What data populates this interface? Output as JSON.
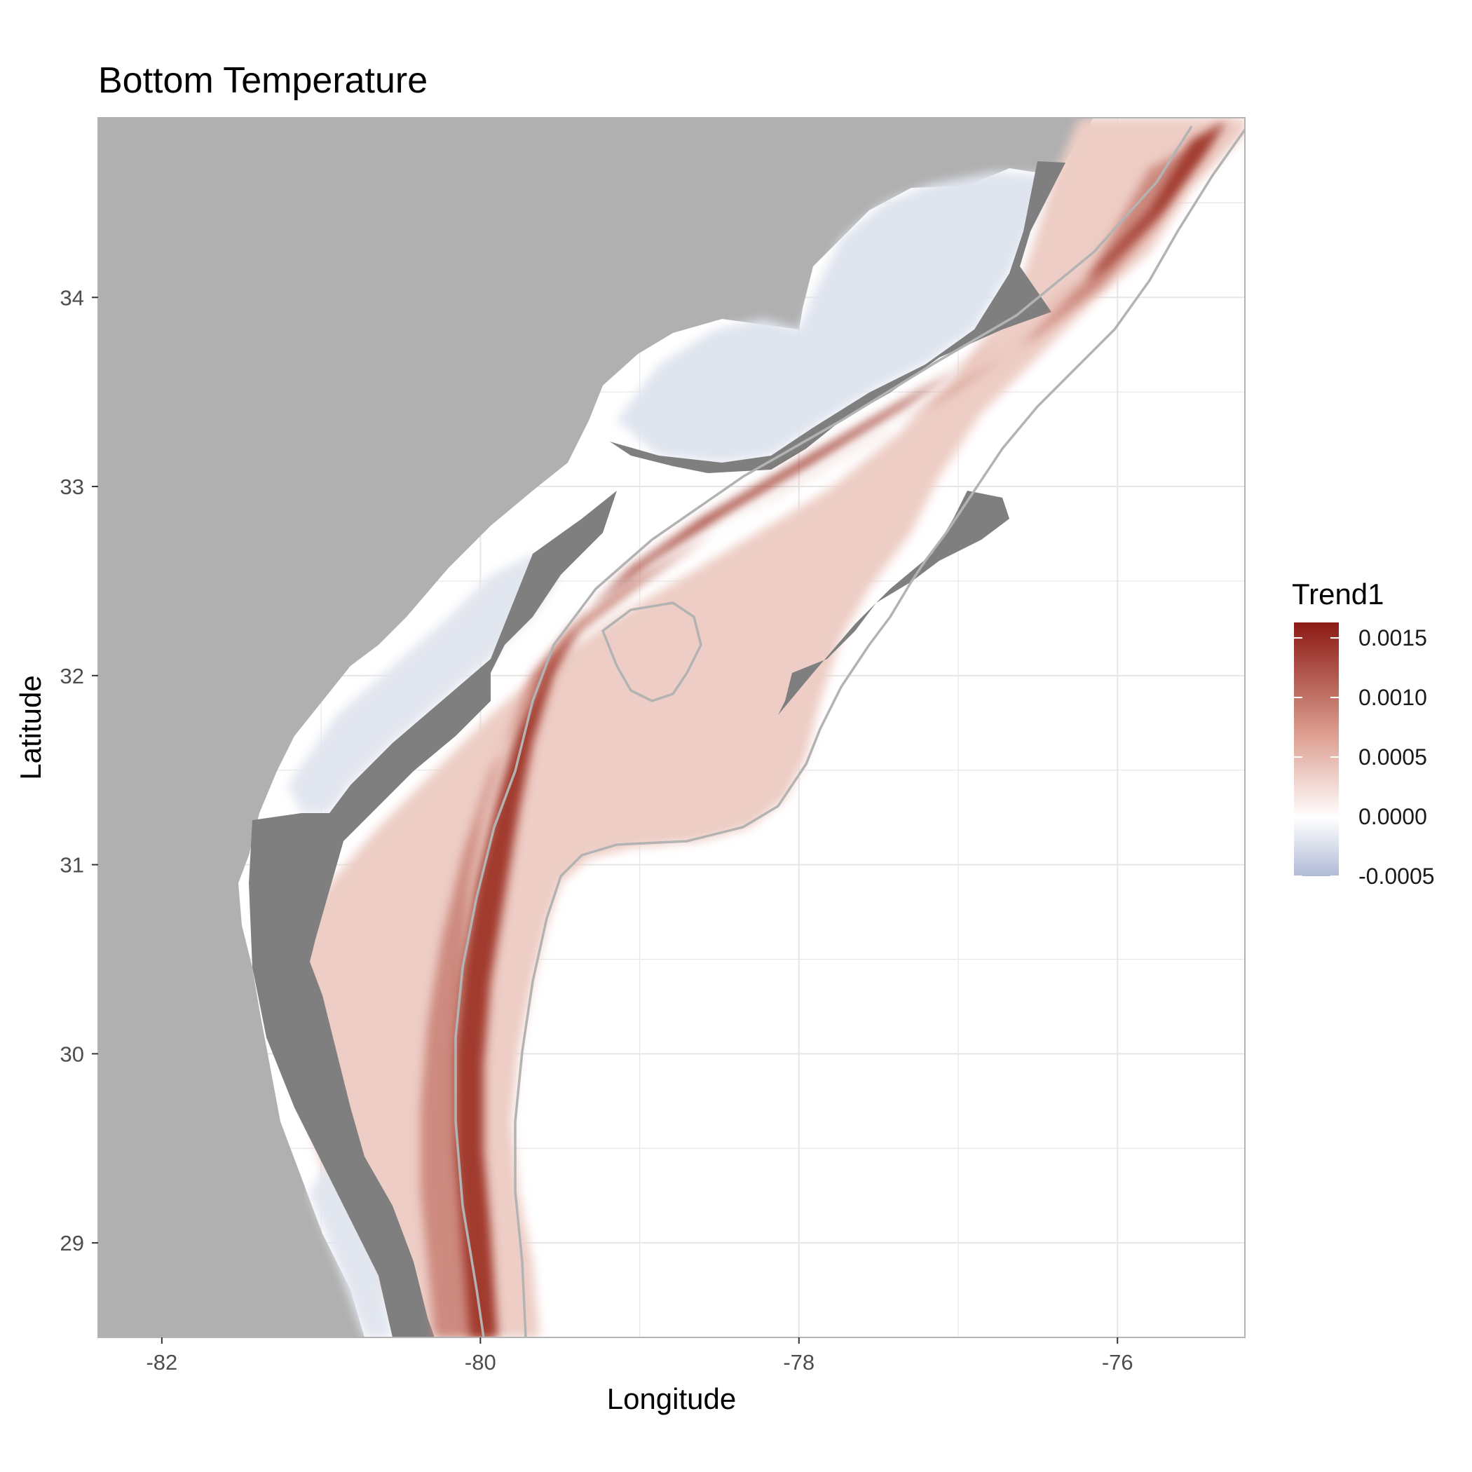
{
  "title": "Bottom Temperature",
  "map": {
    "x_label": "Longitude",
    "y_label": "Latitude",
    "x_range": [
      -82.4,
      -75.2
    ],
    "y_range": [
      28.5,
      34.95
    ],
    "x_ticks": [
      -82,
      -80,
      -78,
      -76
    ],
    "y_ticks": [
      29,
      30,
      31,
      32,
      33,
      34
    ],
    "colors": {
      "land": "#b0b0b0",
      "missing_cells": "#7f7f7f",
      "panel_background": "#ffffff",
      "grid": "#e6e6e6",
      "contour": "#b3b3b3",
      "high": "#8b1a14",
      "mid": "#ffffff",
      "low": "#b0bbd6"
    },
    "regions": [
      {
        "name": "land",
        "fill": "#b0b0b0",
        "shape": "land"
      },
      {
        "name": "missing-cells",
        "fill": "#7f7f7f",
        "shape": "missing"
      },
      {
        "name": "shelf-positive",
        "fill": "#ecc6bd",
        "shape": "shelf"
      },
      {
        "name": "nearshore-negative",
        "fill": "#dfe4ee",
        "shape": "nearshore"
      },
      {
        "name": "midshelf-band",
        "fill": "#c0665a",
        "shape": "band"
      },
      {
        "name": "shelf-break-core",
        "fill": "#9e2d24",
        "shape": "core"
      }
    ]
  },
  "legend": {
    "title": "Trend1",
    "labels": [
      "0.0015",
      "0.0010",
      "0.0005",
      "0.0000",
      "-0.0005"
    ],
    "values": [
      0.0015,
      0.001,
      0.0005,
      0.0,
      -0.0005
    ],
    "range": [
      -0.0005,
      0.00163
    ]
  }
}
